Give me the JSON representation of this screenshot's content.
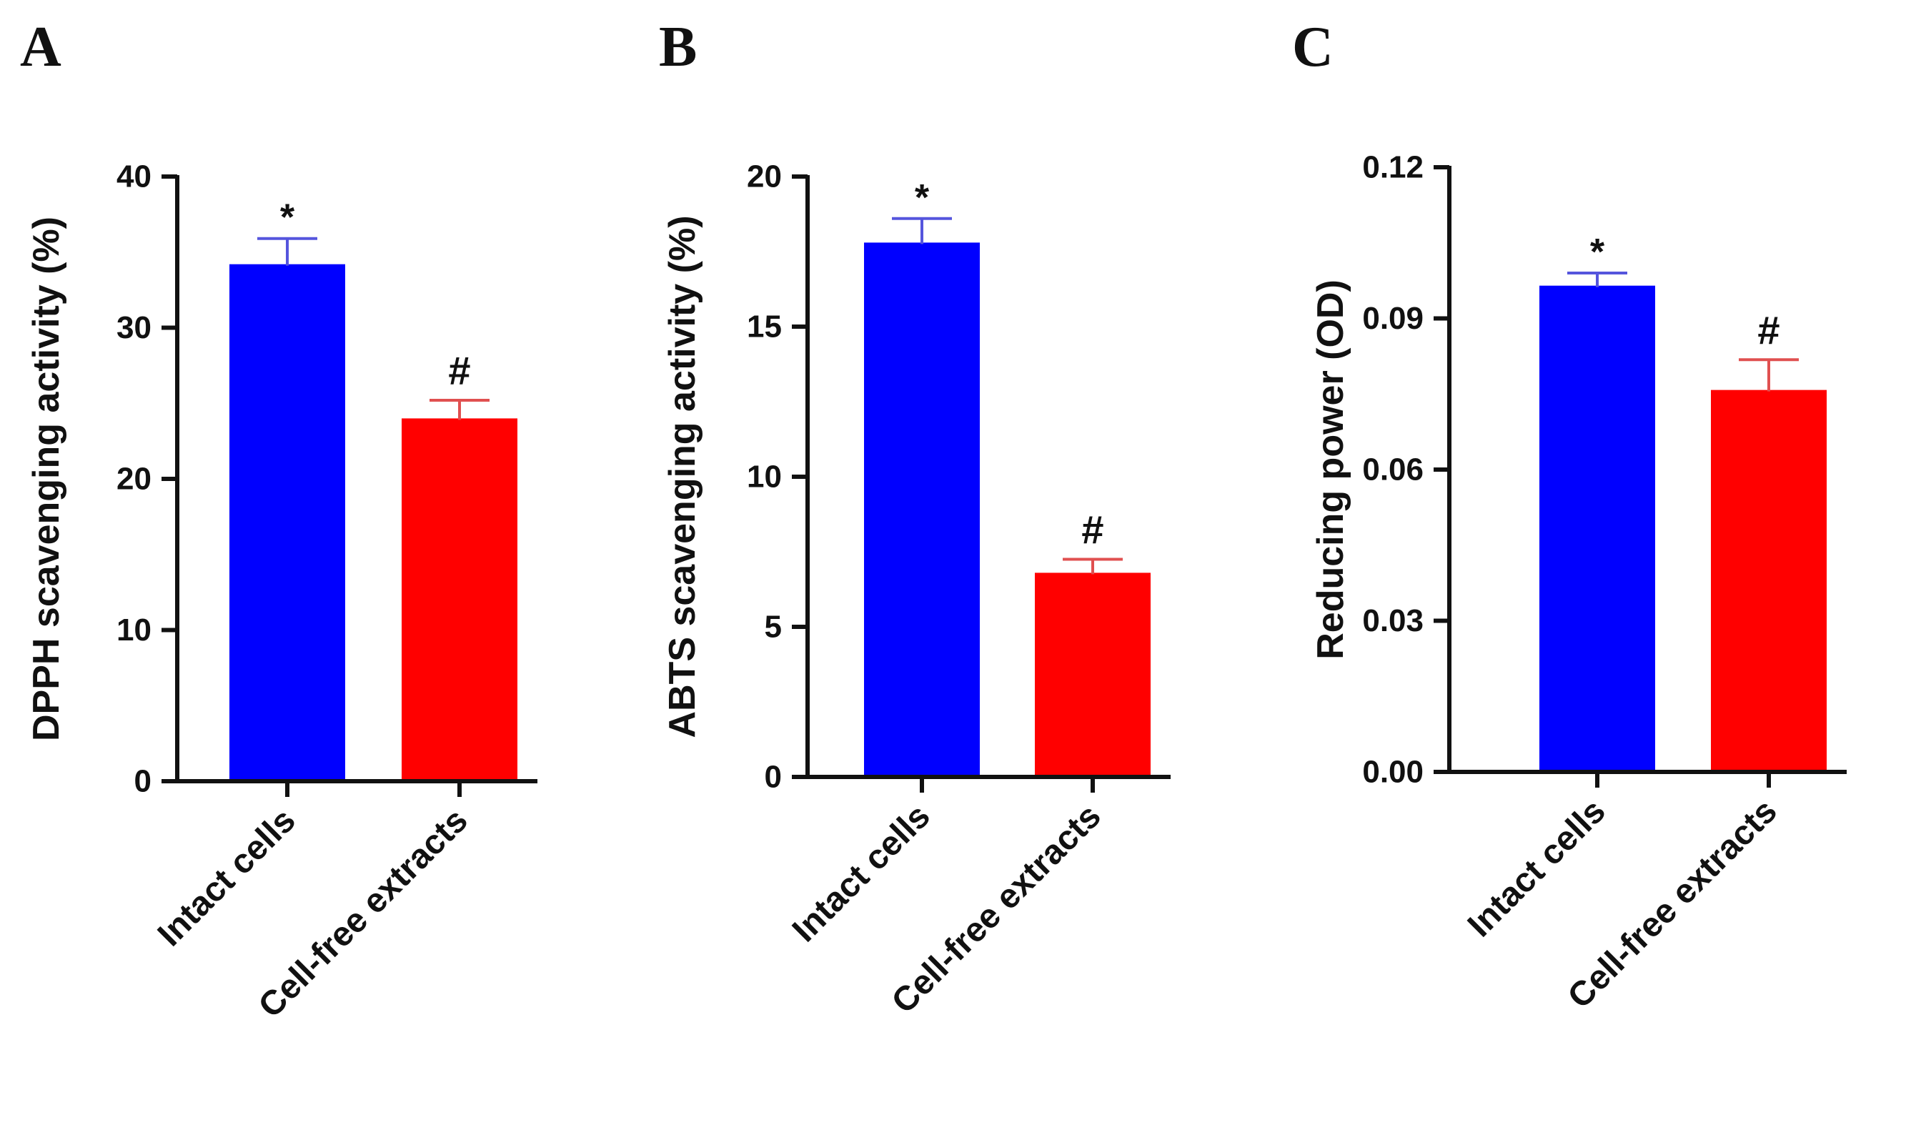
{
  "colors": {
    "intact": "#0000ff",
    "cellfree": "#ff0000",
    "intact_error": "#5555dd",
    "cellfree_error": "#e05050",
    "axis": "#111111"
  },
  "chart_data": [
    {
      "type": "bar",
      "panel": "A",
      "ylabel": "DPPH scavenging activity (%)",
      "ylim": [
        0,
        40
      ],
      "yticks": [
        0,
        10,
        20,
        30,
        40
      ],
      "ytick_labels": [
        "0",
        "10",
        "20",
        "30",
        "40"
      ],
      "categories": [
        "Intact cells",
        "Cell-free extracts"
      ],
      "values": [
        34.2,
        24.0
      ],
      "errors": [
        1.7,
        1.2
      ],
      "significance": [
        "*",
        "#"
      ]
    },
    {
      "type": "bar",
      "panel": "B",
      "ylabel": "ABTS scavenging activity (%)",
      "ylim": [
        0,
        20
      ],
      "yticks": [
        0,
        5,
        10,
        15,
        20
      ],
      "ytick_labels": [
        "0",
        "5",
        "10",
        "15",
        "20"
      ],
      "categories": [
        "Intact cells",
        "Cell-free extracts"
      ],
      "values": [
        17.8,
        6.8
      ],
      "errors": [
        0.8,
        0.45
      ],
      "significance": [
        "*",
        "#"
      ]
    },
    {
      "type": "bar",
      "panel": "C",
      "ylabel": "Reducing power (OD)",
      "ylim": [
        0,
        0.12
      ],
      "yticks": [
        0,
        0.03,
        0.06,
        0.09,
        0.12
      ],
      "ytick_labels": [
        "0.00",
        "0.03",
        "0.06",
        "0.09",
        "0.12"
      ],
      "categories": [
        "Intact cells",
        "Cell-free extracts"
      ],
      "values": [
        0.0965,
        0.0758
      ],
      "errors": [
        0.0025,
        0.006
      ],
      "significance": [
        "*",
        "#"
      ]
    }
  ]
}
